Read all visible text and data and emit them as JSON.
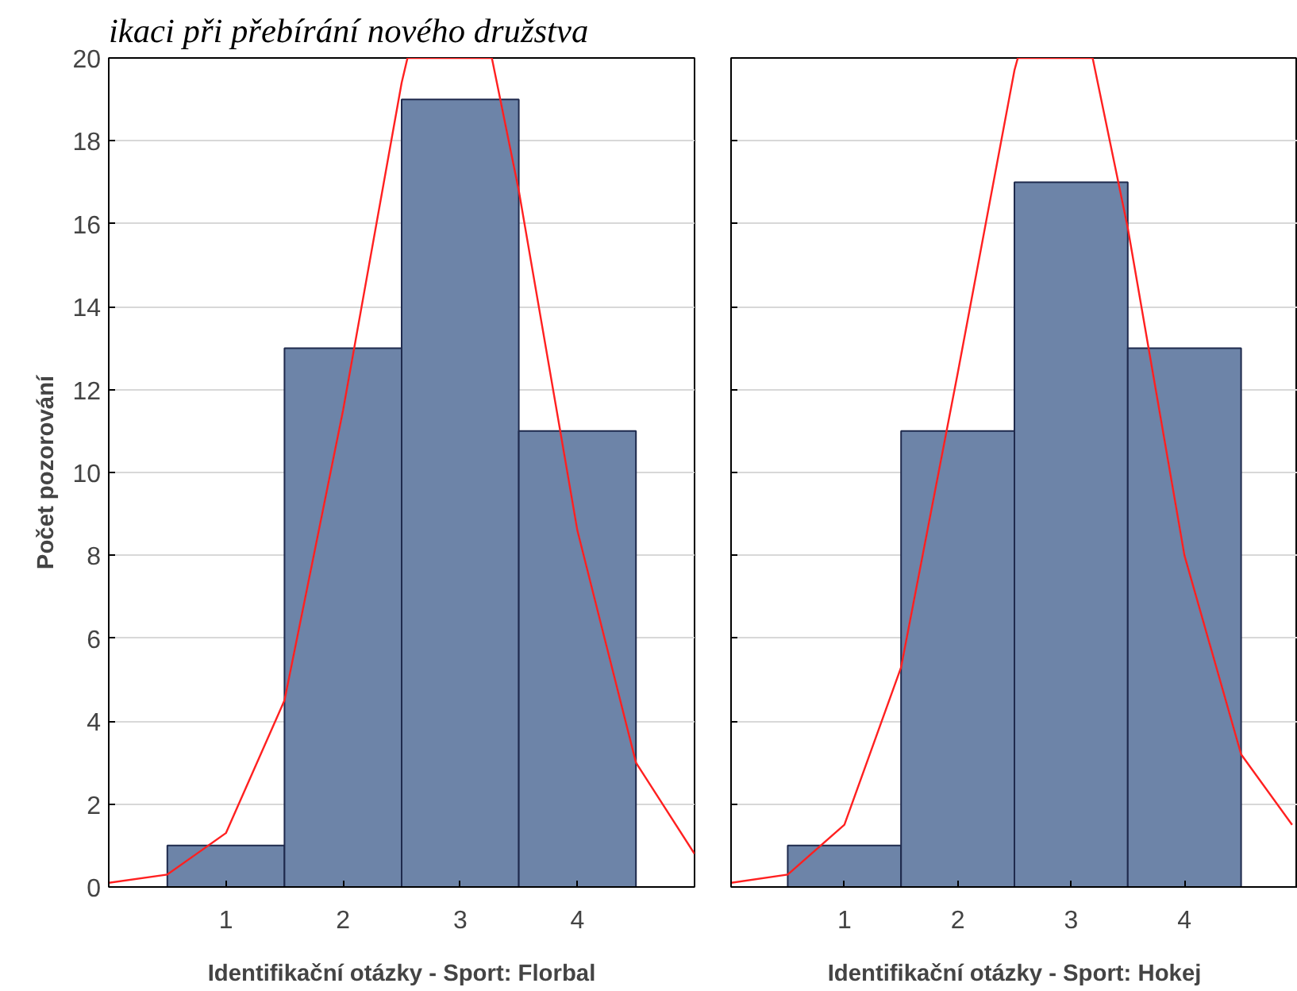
{
  "chart_data": [
    {
      "type": "histogram",
      "title": "ikaci při přebírání nového družstva",
      "xlabel": "Identifikační otázky - Sport: Florbal",
      "ylabel": "Počet pozorování",
      "bins": [
        0.5,
        1.5,
        2.5,
        3.5,
        4.5
      ],
      "xlim": [
        0,
        5
      ],
      "ylim": [
        0,
        20
      ],
      "xticks": [
        1,
        2,
        3,
        4
      ],
      "yticks": [
        0,
        2,
        4,
        6,
        8,
        10,
        12,
        14,
        16,
        18,
        20
      ],
      "grid": "y",
      "series": [
        {
          "color": "#6d84a8",
          "values": [
            1,
            13,
            19,
            11
          ]
        },
        {
          "type": "line",
          "color": "#ff2020",
          "x": [
            0,
            0.5,
            1,
            1.5,
            2,
            2.5,
            2.55,
            3.27,
            3.5,
            4,
            4.5,
            5
          ],
          "values": [
            0.1,
            0.3,
            1.3,
            4.5,
            11.5,
            19.4,
            20,
            20,
            16.8,
            8.6,
            3.0,
            0.8
          ]
        }
      ]
    },
    {
      "type": "histogram",
      "xlabel": "Identifikační otázky - Sport: Hokej",
      "tick_labels": "x",
      "bins": [
        0.5,
        1.5,
        2.5,
        3.5,
        4.5
      ],
      "xlim": [
        0,
        5
      ],
      "ylim": [
        0,
        20
      ],
      "xticks": [
        1,
        2,
        3,
        4
      ],
      "yticks": [
        0,
        2,
        4,
        6,
        8,
        10,
        12,
        14,
        16,
        18,
        20
      ],
      "grid": "y",
      "series": [
        {
          "color": "#6d84a8",
          "values": [
            1,
            11,
            17,
            13
          ]
        },
        {
          "type": "line",
          "color": "#ff2020",
          "x": [
            0,
            0.5,
            1,
            1.5,
            2,
            2.5,
            2.53,
            3.19,
            3.5,
            4,
            4.5,
            4.95
          ],
          "values": [
            0.1,
            0.3,
            1.5,
            5.3,
            12.4,
            19.7,
            20,
            20,
            15.9,
            8.0,
            3.2,
            1.5
          ]
        }
      ]
    }
  ]
}
